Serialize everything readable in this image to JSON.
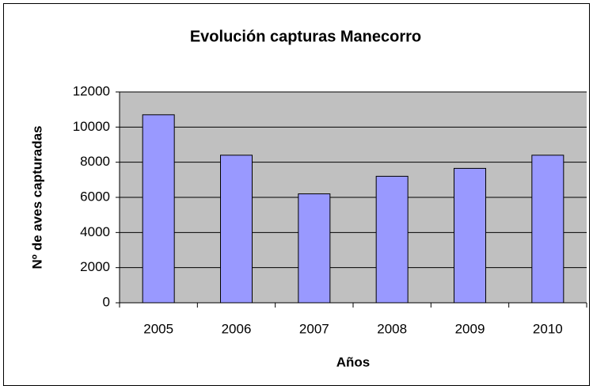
{
  "chart_data": {
    "type": "bar",
    "title": "Evolución capturas Manecorro",
    "x_label": "Años",
    "y_label": "Nº de aves capturadas",
    "categories": [
      "2005",
      "2006",
      "2007",
      "2008",
      "2009",
      "2010"
    ],
    "values": [
      10700,
      8400,
      6200,
      7200,
      7650,
      8400
    ],
    "color": "#9999ff",
    "plot_background": "#c0c0c0",
    "ylim": [
      0,
      12000
    ],
    "yticks": [
      0,
      2000,
      4000,
      6000,
      8000,
      10000,
      12000
    ],
    "grid": true
  }
}
